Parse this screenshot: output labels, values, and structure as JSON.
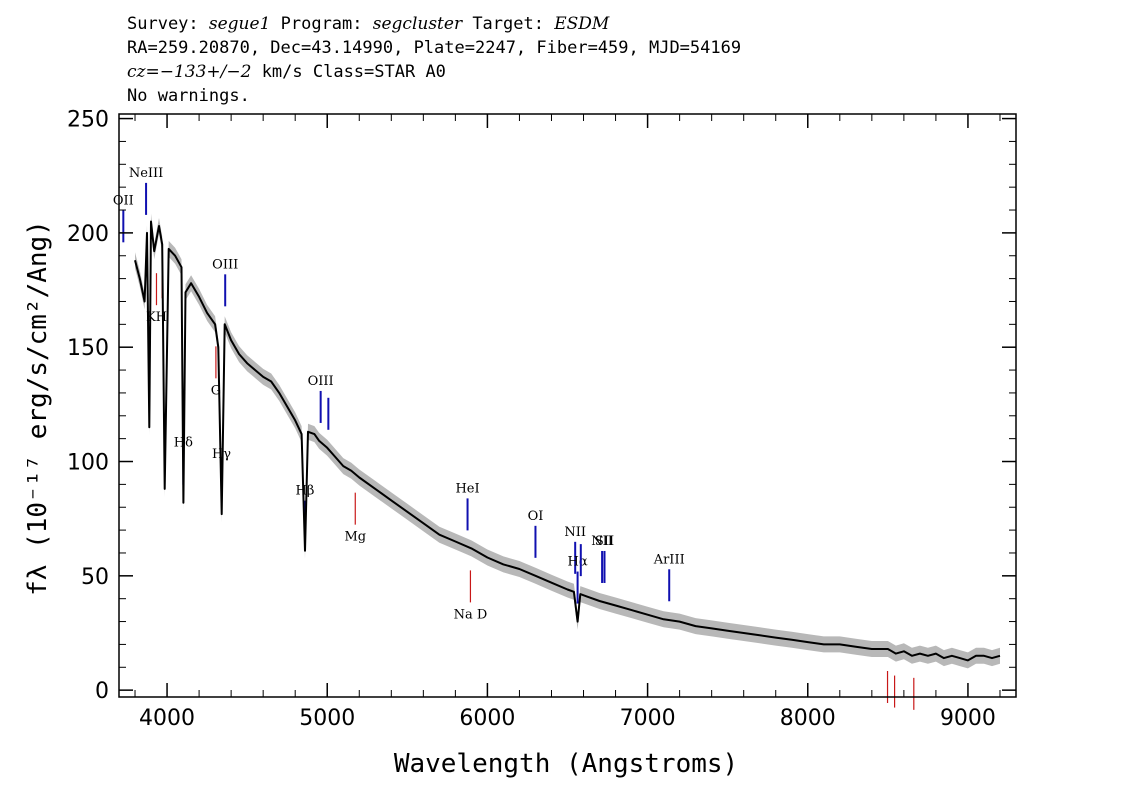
{
  "header": {
    "line1": {
      "survey_label": "Survey: ",
      "survey": "segue1",
      "program_label": " Program: ",
      "program": "segcluster",
      "target_label": " Target: ",
      "target": "ESDM"
    },
    "line2": "RA=259.20870, Dec=43.14990, Plate=2247, Fiber=459, MJD=54169",
    "line3": {
      "cz": "cz=−133+/−2",
      "rest": " km/s Class=STAR A0"
    },
    "line4": "No warnings."
  },
  "chart_data": {
    "type": "line",
    "xlabel": "Wavelength (Angstroms)",
    "ylabel": "fλ (10⁻¹⁷ erg/s/cm²/Ang)",
    "xlim": [
      3700,
      9300
    ],
    "ylim": [
      -3,
      252
    ],
    "x_ticks": [
      4000,
      5000,
      6000,
      7000,
      8000,
      9000
    ],
    "y_ticks": [
      0,
      50,
      100,
      150,
      200,
      250
    ],
    "grid": false,
    "colors": {
      "spectrum": "#000000",
      "error_band": "#b8b8b8",
      "emission_lines": "#1010b0",
      "absorption_lines": "#c81818"
    },
    "spectrum": {
      "x": [
        3800,
        3830,
        3860,
        3875,
        3889,
        3900,
        3920,
        3950,
        3970,
        3985,
        4010,
        4050,
        4090,
        4102,
        4115,
        4150,
        4200,
        4250,
        4300,
        4320,
        4341,
        4360,
        4400,
        4450,
        4500,
        4550,
        4600,
        4650,
        4700,
        4750,
        4800,
        4840,
        4861,
        4880,
        4920,
        4950,
        5000,
        5050,
        5100,
        5150,
        5200,
        5300,
        5400,
        5500,
        5600,
        5700,
        5800,
        5900,
        6000,
        6100,
        6200,
        6300,
        6400,
        6500,
        6540,
        6563,
        6580,
        6620,
        6700,
        6800,
        6900,
        7000,
        7100,
        7200,
        7300,
        7400,
        7500,
        7600,
        7700,
        7800,
        7900,
        8000,
        8100,
        8200,
        8300,
        8400,
        8500,
        8550,
        8600,
        8650,
        8700,
        8750,
        8800,
        8850,
        8900,
        8950,
        9000,
        9050,
        9100,
        9150,
        9200
      ],
      "y": [
        188,
        180,
        170,
        200,
        115,
        205,
        192,
        203,
        195,
        88,
        193,
        190,
        185,
        82,
        174,
        178,
        172,
        165,
        160,
        150,
        77,
        160,
        153,
        147,
        143,
        140,
        137,
        135,
        130,
        124,
        118,
        112,
        61,
        113,
        112,
        109,
        106,
        102,
        98,
        96,
        93,
        88,
        83,
        78,
        73,
        68,
        65,
        62,
        58,
        55,
        53,
        50,
        47,
        44,
        43,
        30,
        42,
        41,
        39,
        37,
        35,
        33,
        31,
        30,
        28,
        27,
        26,
        25,
        24,
        23,
        22,
        21,
        20,
        20,
        19,
        18,
        18,
        16,
        17,
        15,
        16,
        15,
        16,
        14,
        15,
        14,
        13,
        15,
        15,
        14,
        15
      ]
    },
    "line_markers": [
      {
        "label": "OII",
        "x": 3727,
        "kind": "emission"
      },
      {
        "label": "NeIII",
        "x": 3869,
        "kind": "emission"
      },
      {
        "label": "Hδ",
        "x": 4102,
        "kind": "emission"
      },
      {
        "label": "Hγ",
        "x": 4340,
        "kind": "emission"
      },
      {
        "label": "OIII",
        "x": 4363,
        "kind": "emission"
      },
      {
        "label": "Hβ",
        "x": 4861,
        "kind": "emission"
      },
      {
        "label": "OIII",
        "x": 4959,
        "kind": "emission"
      },
      {
        "label": "",
        "x": 5007,
        "kind": "emission"
      },
      {
        "label": "HeI",
        "x": 5876,
        "kind": "emission"
      },
      {
        "label": "OI",
        "x": 6300,
        "kind": "emission"
      },
      {
        "label": "NII",
        "x": 6548,
        "kind": "emission"
      },
      {
        "label": "Hα",
        "x": 6563,
        "kind": "emission"
      },
      {
        "label": "",
        "x": 6583,
        "kind": "emission"
      },
      {
        "label": "NII",
        "x": 6716,
        "kind": "emission"
      },
      {
        "label": "SII",
        "x": 6731,
        "kind": "emission"
      },
      {
        "label": "ArIII",
        "x": 7135,
        "kind": "emission"
      },
      {
        "label": "KH",
        "x": 3934,
        "kind": "absorption"
      },
      {
        "label": "",
        "x": 3969,
        "kind": "absorption"
      },
      {
        "label": "G",
        "x": 4305,
        "kind": "absorption"
      },
      {
        "label": "Mg",
        "x": 5175,
        "kind": "absorption"
      },
      {
        "label": "Na D",
        "x": 5894,
        "kind": "absorption"
      },
      {
        "label": "",
        "x": 8498,
        "kind": "absorption"
      },
      {
        "label": "",
        "x": 8542,
        "kind": "absorption"
      },
      {
        "label": "",
        "x": 8662,
        "kind": "absorption"
      }
    ]
  }
}
